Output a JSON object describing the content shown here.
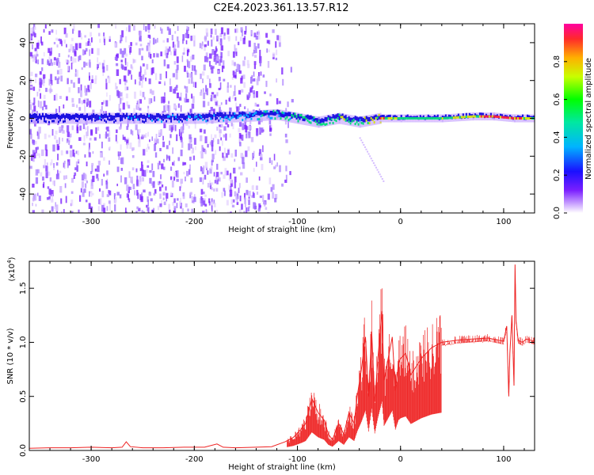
{
  "title": "C2E4.2023.361.13.57.R12",
  "colors": {
    "snr_line": "#ee2222",
    "spec_base": "#7a1fff",
    "spec_core": "#1a10e0",
    "spec_mid": "#00e07a",
    "spec_high": "#ff1f3a"
  },
  "chart_data": [
    {
      "type": "heatmap",
      "title": "C2E4.2023.361.13.57.R12",
      "xlabel": "Height of straight line (km)",
      "ylabel": "Frequency (Hz)",
      "xlim": [
        -360,
        130
      ],
      "ylim": [
        -50,
        50
      ],
      "x_ticks": [
        "-300",
        "-200",
        "-100",
        "0",
        "100"
      ],
      "x_tick_values": [
        -300,
        -200,
        -100,
        0,
        100
      ],
      "y_ticks": [
        "-40",
        "-20",
        "0",
        "20",
        "40"
      ],
      "y_tick_values": [
        -40,
        -20,
        0,
        20,
        40
      ],
      "colorbar": {
        "label": "Normalized spectral amplitude",
        "range": [
          0,
          1
        ],
        "ticks": [
          "0.0",
          "0.2",
          "0.4",
          "0.6",
          "0.8"
        ],
        "tick_values": [
          0,
          0.2,
          0.4,
          0.6,
          0.8
        ]
      },
      "noise_region_x": [
        -360,
        -125
      ],
      "signal_ridge": [
        {
          "x": -360,
          "freq": 0,
          "amp": 0.2
        },
        {
          "x": -300,
          "freq": 0,
          "amp": 0.25
        },
        {
          "x": -200,
          "freq": 0,
          "amp": 0.3
        },
        {
          "x": -150,
          "freq": 1,
          "amp": 0.35
        },
        {
          "x": -120,
          "freq": 2,
          "amp": 0.45
        },
        {
          "x": -100,
          "freq": 0,
          "amp": 0.55
        },
        {
          "x": -80,
          "freq": -2,
          "amp": 0.55
        },
        {
          "x": -60,
          "freq": 0,
          "amp": 0.6
        },
        {
          "x": -40,
          "freq": -2,
          "amp": 0.55
        },
        {
          "x": -20,
          "freq": 0,
          "amp": 0.8
        },
        {
          "x": 0,
          "freq": 0,
          "amp": 0.55
        },
        {
          "x": 40,
          "freq": 0,
          "amp": 0.6
        },
        {
          "x": 70,
          "freq": 1,
          "amp": 0.75
        },
        {
          "x": 90,
          "freq": 1,
          "amp": 0.95
        },
        {
          "x": 110,
          "freq": 0,
          "amp": 0.85
        },
        {
          "x": 130,
          "freq": 0,
          "amp": 0.6
        }
      ]
    },
    {
      "type": "line",
      "xlabel": "Height of straight line (km)",
      "ylabel": "SNR (10 * v/v)",
      "y_scale_label": "(x10",
      "y_scale_exp": "4",
      "y_scale_close": ")",
      "xlim": [
        -360,
        130
      ],
      "ylim": [
        0,
        17500
      ],
      "x_ticks": [
        "-300",
        "-200",
        "-100",
        "0",
        "100"
      ],
      "x_tick_values": [
        -300,
        -200,
        -100,
        0,
        100
      ],
      "y_ticks": [
        "0.0",
        "0.5",
        "1.0",
        "1.5"
      ],
      "y_tick_values": [
        0,
        5000,
        10000,
        15000
      ],
      "series": [
        {
          "x": [
            -360,
            -340,
            -320,
            -300,
            -280,
            -270,
            -266,
            -262,
            -250,
            -230,
            -210,
            -190,
            -178,
            -172,
            -160,
            -140,
            -125,
            -112,
            -104,
            -96,
            -92,
            -86,
            -80,
            -74,
            -70,
            -66,
            -60,
            -55,
            -50,
            -45,
            -42,
            -38,
            -34,
            -31,
            -28,
            -25,
            -22,
            -18,
            -16,
            -12,
            -8,
            -5,
            -2,
            0,
            5,
            10,
            20,
            30,
            40,
            55,
            70,
            85,
            95,
            100,
            103,
            105,
            106,
            108,
            110,
            111,
            112,
            114,
            118,
            122,
            126,
            130
          ],
          "y": [
            200,
            250,
            250,
            300,
            250,
            300,
            800,
            350,
            250,
            250,
            300,
            300,
            600,
            300,
            250,
            300,
            350,
            800,
            1200,
            2000,
            2500,
            4800,
            3500,
            2800,
            1500,
            1000,
            2500,
            1500,
            3500,
            2500,
            5000,
            7500,
            10500,
            5000,
            11000,
            4500,
            8500,
            12900,
            6500,
            8500,
            10500,
            5500,
            8000,
            8500,
            9000,
            7000,
            8500,
            9500,
            10000,
            10200,
            10300,
            10400,
            10200,
            10100,
            11500,
            5000,
            9000,
            12500,
            6000,
            17200,
            12000,
            10200,
            10000,
            10300,
            10200,
            10100
          ]
        }
      ]
    }
  ]
}
